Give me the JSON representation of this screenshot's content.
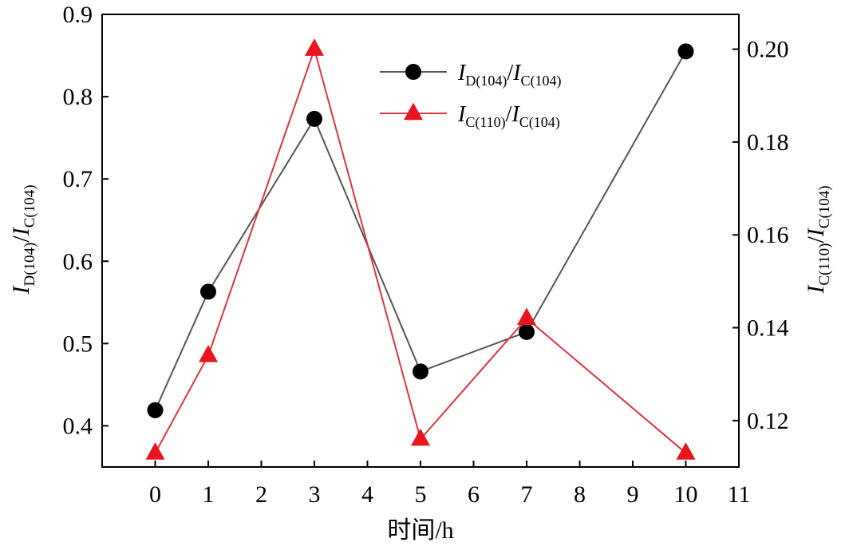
{
  "chart_data": {
    "type": "line",
    "x": [
      0,
      1,
      3,
      5,
      7,
      10
    ],
    "xlim": [
      -1,
      11
    ],
    "xticks": [
      0,
      1,
      2,
      3,
      4,
      5,
      6,
      7,
      8,
      9,
      10,
      11
    ],
    "xlabel": "时间/h",
    "y_left": {
      "label_main": "I",
      "label_sub": "D(104)",
      "label_slash": "/",
      "label_main2": "I",
      "label_sub2": "C(104)",
      "lim": [
        0.35,
        0.9
      ],
      "ticks": [
        0.4,
        0.5,
        0.6,
        0.7,
        0.8,
        0.9
      ]
    },
    "y_right": {
      "label_main": "I",
      "label_sub": "C(110)",
      "label_slash": "/",
      "label_main2": "I",
      "label_sub2": "C(104)",
      "lim": [
        0.11,
        0.2075
      ],
      "ticks": [
        0.12,
        0.14,
        0.16,
        0.18,
        0.2
      ]
    },
    "series": [
      {
        "axis": "left",
        "marker": "circle",
        "color": "#555555",
        "marker_color": "#000000",
        "legend_main": "I",
        "legend_sub": "D(104)",
        "legend_slash": "/",
        "legend_main2": "I",
        "legend_sub2": "C(104)",
        "values": [
          0.419,
          0.563,
          0.773,
          0.466,
          0.514,
          0.855
        ]
      },
      {
        "axis": "right",
        "marker": "triangle",
        "color": "#d9363e",
        "marker_color": "#e8141e",
        "legend_main": "I",
        "legend_sub": "C(110)",
        "legend_slash": "/",
        "legend_main2": "I",
        "legend_sub2": "C(104)",
        "values": [
          0.113,
          0.134,
          0.2,
          0.116,
          0.142,
          0.113
        ]
      }
    ],
    "grid": false,
    "legend_position": "top-center"
  }
}
